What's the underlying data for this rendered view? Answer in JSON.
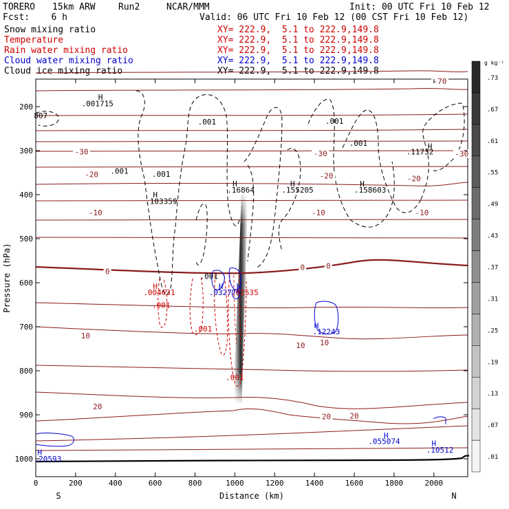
{
  "header": {
    "model": "TORERO",
    "resolution": "15km ARW",
    "run": "Run2",
    "org": "NCAR/MMM",
    "init": "Init: 00 UTC Fri 10 Feb 12",
    "fcst": "Fcst:    6 h",
    "valid": "Valid: 06 UTC Fri 10 Feb 12 (00 CST Fri 10 Feb 12)"
  },
  "legend": [
    {
      "label": "Snow mixing ratio",
      "xy": "XY= 222.9,  5.1 to 222.9,149.8",
      "color": "#000000"
    },
    {
      "label": "Temperature",
      "xy": "XY= 222.9,  5.1 to 222.9,149.8",
      "color": "#cc0000"
    },
    {
      "label": "Rain water mixing ratio",
      "xy": "XY= 222.9,  5.1 to 222.9,149.8",
      "color": "#cc0000"
    },
    {
      "label": "Cloud water mixing ratio",
      "xy": "XY= 222.9,  5.1 to 222.9,149.8",
      "color": "#0000cc"
    },
    {
      "label": "Cloud ice mixing ratio",
      "xy": "XY= 222.9,  5.1 to 222.9,149.8",
      "color": "#000000"
    }
  ],
  "chart_data": {
    "type": "contour",
    "xlabel": "Distance (km)",
    "ylabel": "Pressure (hPa)",
    "xlim": [
      0,
      2170
    ],
    "ylim": [
      1050,
      100
    ],
    "x_ticks": [
      0,
      200,
      400,
      600,
      800,
      1000,
      1200,
      1400,
      1600,
      1800,
      2000
    ],
    "y_ticks": [
      200,
      300,
      400,
      500,
      600,
      700,
      800,
      900,
      1000
    ],
    "x_end_labels": {
      "left": "S",
      "right": "N"
    },
    "colorbar": {
      "unit": "g kg⁻¹",
      "ticks": [
        ".01",
        ".07",
        ".13",
        ".19",
        ".25",
        ".31",
        ".37",
        ".43",
        ".49",
        ".55",
        ".61",
        ".67",
        ".73"
      ]
    },
    "temperature_isotherms": [
      {
        "label": "-70",
        "x": 2030,
        "p": 142
      },
      {
        "label": "-30",
        "x": 230,
        "p": 302
      },
      {
        "label": "-30",
        "x": 1430,
        "p": 306
      },
      {
        "label": "-30",
        "x": 2140,
        "p": 307
      },
      {
        "label": "-20",
        "x": 280,
        "p": 354
      },
      {
        "label": "-20",
        "x": 1460,
        "p": 357
      },
      {
        "label": "-20",
        "x": 1900,
        "p": 363
      },
      {
        "label": "-10",
        "x": 300,
        "p": 441
      },
      {
        "label": "-10",
        "x": 1420,
        "p": 441
      },
      {
        "label": "-10",
        "x": 1940,
        "p": 441
      },
      {
        "label": "0",
        "x": 360,
        "p": 574
      },
      {
        "label": "0",
        "x": 1340,
        "p": 565
      },
      {
        "label": "0",
        "x": 1470,
        "p": 562
      },
      {
        "label": "10",
        "x": 250,
        "p": 720
      },
      {
        "label": "10",
        "x": 1330,
        "p": 742
      },
      {
        "label": "10",
        "x": 1450,
        "p": 736
      },
      {
        "label": "20",
        "x": 310,
        "p": 881
      },
      {
        "label": "20",
        "x": 1460,
        "p": 904
      },
      {
        "label": "20",
        "x": 1600,
        "p": 902
      }
    ],
    "labels": [
      {
        "text": ".001715",
        "x": 310,
        "p": 193,
        "color": "#000000"
      },
      {
        "text": "807",
        "x": 25,
        "p": 220,
        "color": "#000000"
      },
      {
        "text": ".001",
        "x": 860,
        "p": 234,
        "color": "#000000"
      },
      {
        "text": ".001",
        "x": 1500,
        "p": 233,
        "color": "#000000"
      },
      {
        "text": ".001",
        "x": 1620,
        "p": 283,
        "color": "#000000"
      },
      {
        "text": ".001",
        "x": 420,
        "p": 346,
        "color": "#000000"
      },
      {
        "text": ".001",
        "x": 630,
        "p": 353,
        "color": "#000000"
      },
      {
        "text": ".11732",
        "x": 1930,
        "p": 302,
        "color": "#000000"
      },
      {
        "text": ".16864",
        "x": 1030,
        "p": 389,
        "color": "#000000"
      },
      {
        "text": ".155205",
        "x": 1315,
        "p": 389,
        "color": "#000000"
      },
      {
        "text": ".158603",
        "x": 1680,
        "p": 389,
        "color": "#000000"
      },
      {
        "text": ".103359",
        "x": 630,
        "p": 415,
        "color": "#000000"
      },
      {
        "text": ".001",
        "x": 870,
        "p": 585,
        "color": "#000000"
      },
      {
        "text": ".004631",
        "x": 620,
        "p": 622,
        "color": "#cc0000"
      },
      {
        "text": ".001",
        "x": 630,
        "p": 651,
        "color": "#cc0000"
      },
      {
        "text": ".001",
        "x": 840,
        "p": 705,
        "color": "#cc0000"
      },
      {
        "text": ".032779",
        "x": 950,
        "p": 622,
        "color": "#0000cc"
      },
      {
        "text": ".02535",
        "x": 1050,
        "p": 622,
        "color": "#cc0000"
      },
      {
        "text": ".12243",
        "x": 1460,
        "p": 711,
        "color": "#0000cc"
      },
      {
        "text": ".001",
        "x": 1000,
        "p": 815,
        "color": "#cc0000"
      },
      {
        "text": ".055074",
        "x": 1750,
        "p": 960,
        "color": "#0000cc"
      },
      {
        "text": ".10512",
        "x": 2030,
        "p": 980,
        "color": "#0000cc"
      },
      {
        "text": ".20593",
        "x": 60,
        "p": 1000,
        "color": "#0000cc"
      }
    ],
    "maxima": [
      {
        "x": 325,
        "p": 178,
        "color": "#000000"
      },
      {
        "x": 1980,
        "p": 290,
        "color": "#000000"
      },
      {
        "x": 1000,
        "p": 375,
        "color": "#000000"
      },
      {
        "x": 1290,
        "p": 375,
        "color": "#000000"
      },
      {
        "x": 1640,
        "p": 375,
        "color": "#000000"
      },
      {
        "x": 600,
        "p": 400,
        "color": "#000000"
      },
      {
        "x": 600,
        "p": 608,
        "color": "#cc0000"
      },
      {
        "x": 930,
        "p": 608,
        "color": "#0000cc"
      },
      {
        "x": 1020,
        "p": 608,
        "color": "#0000cc"
      },
      {
        "x": 1410,
        "p": 697,
        "color": "#0000cc"
      },
      {
        "x": 1760,
        "p": 947,
        "color": "#0000cc"
      },
      {
        "x": 2000,
        "p": 965,
        "color": "#0000cc"
      },
      {
        "x": 20,
        "p": 985,
        "color": "#0000cc"
      }
    ]
  }
}
